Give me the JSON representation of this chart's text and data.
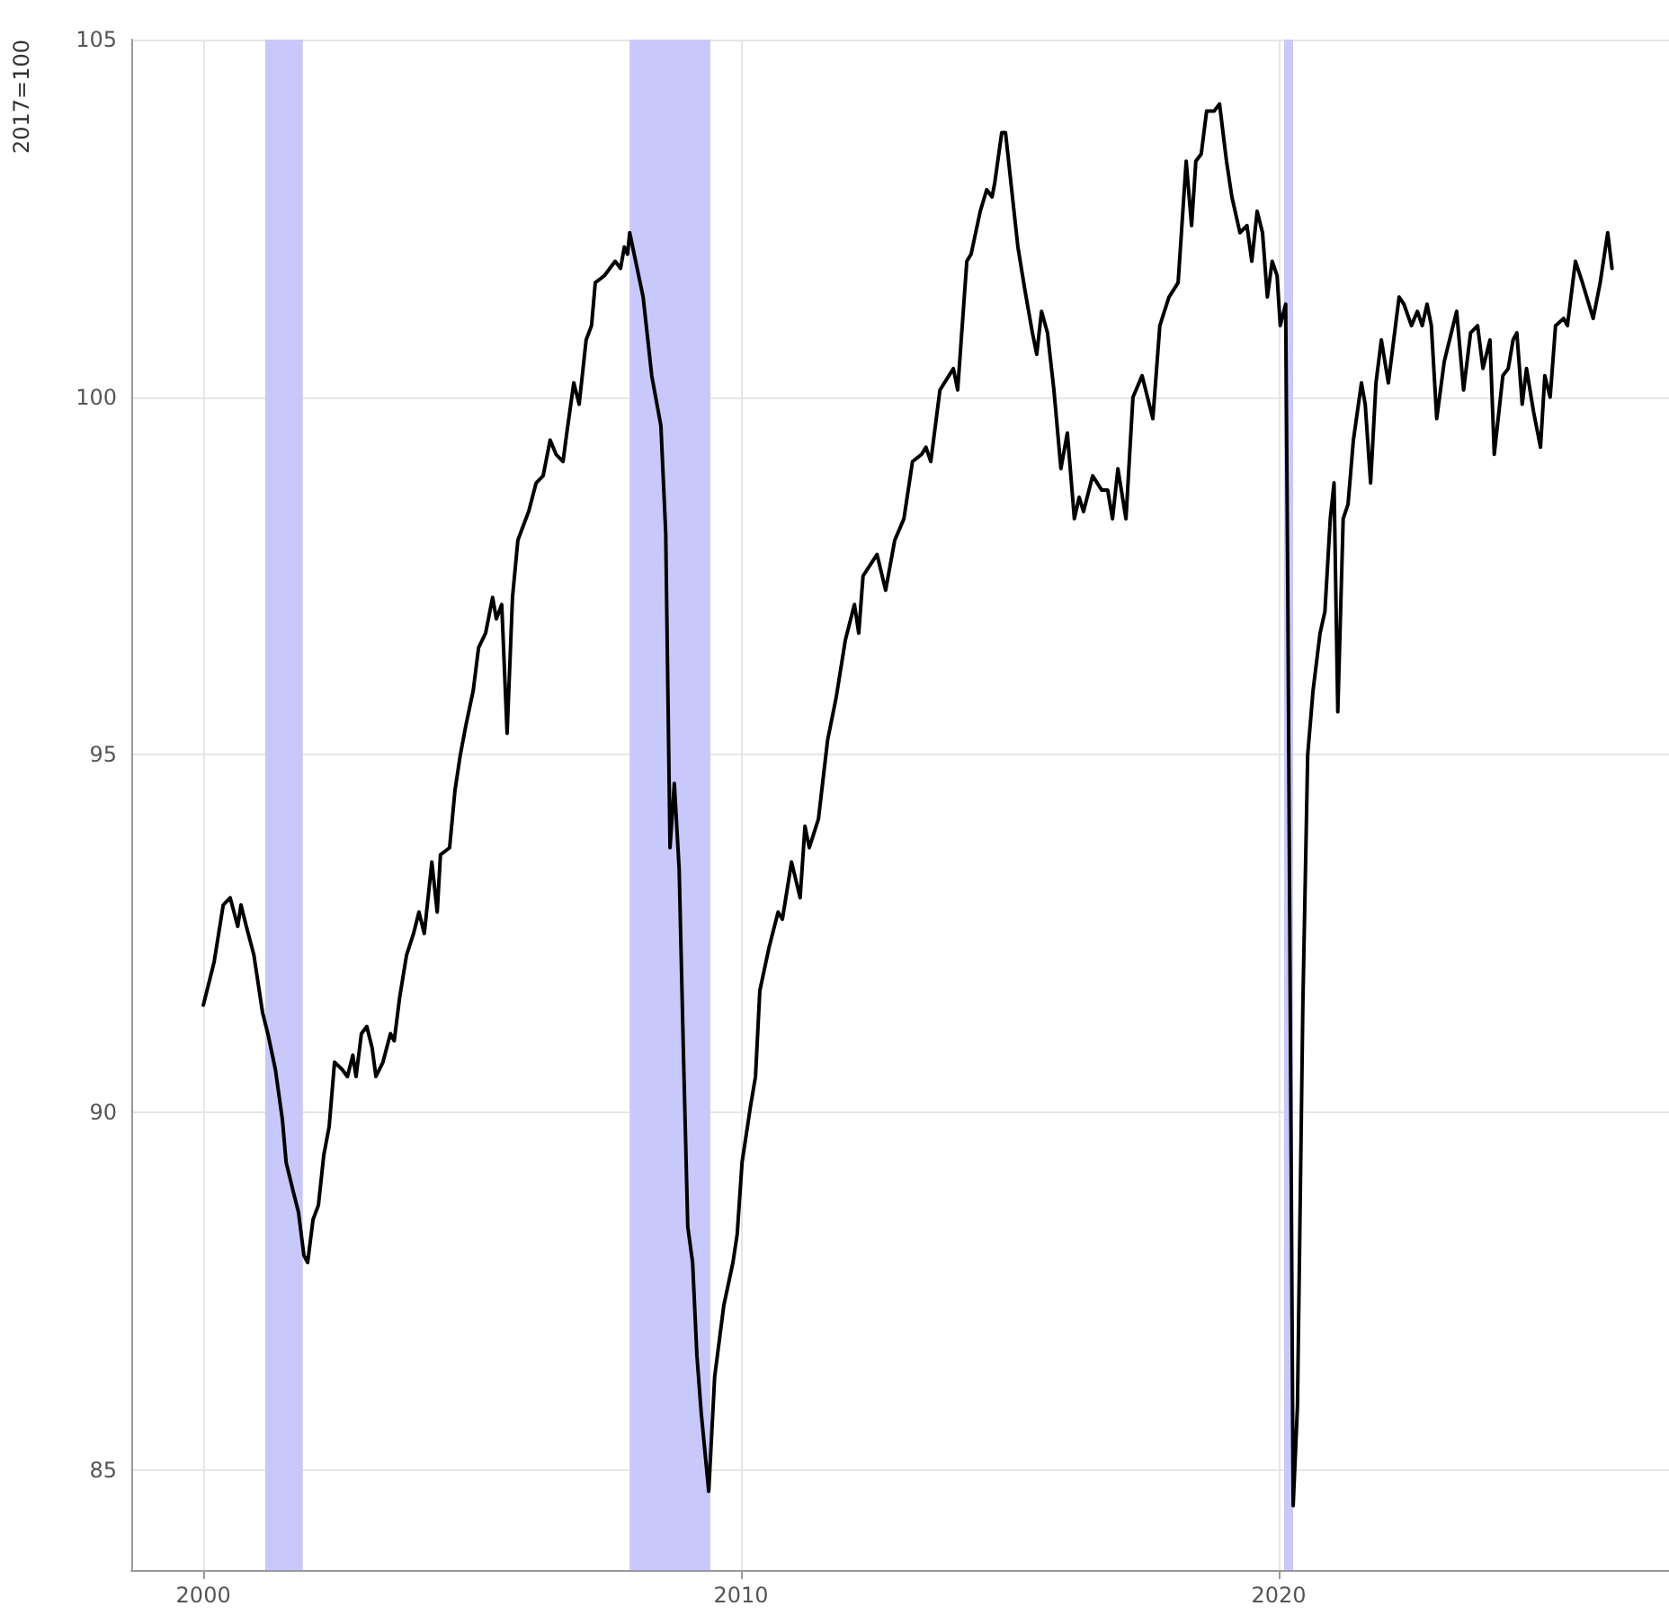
{
  "chart_data": {
    "type": "line",
    "ylabel": "2017=100",
    "xlim": [
      1998.66,
      2027.26
    ],
    "ylim": [
      83.6,
      105
    ],
    "xticks": [
      2000,
      2010,
      2020
    ],
    "yticks": [
      85,
      90,
      95,
      100,
      105
    ],
    "grid": true,
    "line_style": "solid",
    "bands": [
      {
        "axis": "x",
        "from": 2001.15,
        "to": 2001.85,
        "color": "#c8c8fa"
      },
      {
        "axis": "x",
        "from": 2007.93,
        "to": 2009.43,
        "color": "#c8c8fa"
      },
      {
        "axis": "x",
        "from": 2020.1,
        "to": 2020.27,
        "color": "#c8c8fa"
      }
    ],
    "series": [
      {
        "color": "#000000",
        "x": [
          2000.0,
          2000.2,
          2000.37,
          2000.5,
          2000.64,
          2000.7,
          2000.8,
          2000.94,
          2001.1,
          2001.2,
          2001.34,
          2001.47,
          2001.54,
          2001.67,
          2001.77,
          2001.87,
          2001.94,
          2002.04,
          2002.14,
          2002.24,
          2002.34,
          2002.44,
          2002.58,
          2002.68,
          2002.78,
          2002.84,
          2002.94,
          2003.04,
          2003.14,
          2003.21,
          2003.34,
          2003.48,
          2003.55,
          2003.65,
          2003.78,
          2003.91,
          2004.01,
          2004.11,
          2004.25,
          2004.35,
          2004.41,
          2004.58,
          2004.68,
          2004.78,
          2004.88,
          2005.02,
          2005.12,
          2005.25,
          2005.38,
          2005.45,
          2005.55,
          2005.65,
          2005.75,
          2005.85,
          2005.95,
          2006.05,
          2006.19,
          2006.32,
          2006.45,
          2006.56,
          2006.69,
          2006.76,
          2006.89,
          2006.99,
          2007.12,
          2007.22,
          2007.29,
          2007.46,
          2007.56,
          2007.66,
          2007.76,
          2007.83,
          2007.89,
          2007.93,
          2008.18,
          2008.34,
          2008.51,
          2008.6,
          2008.68,
          2008.76,
          2008.85,
          2008.93,
          2009.01,
          2009.1,
          2009.18,
          2009.26,
          2009.4,
          2009.51,
          2009.68,
          2009.85,
          2009.93,
          2010.02,
          2010.18,
          2010.27,
          2010.35,
          2010.52,
          2010.69,
          2010.77,
          2010.94,
          2011.1,
          2011.19,
          2011.27,
          2011.44,
          2011.61,
          2011.77,
          2011.94,
          2012.11,
          2012.19,
          2012.27,
          2012.53,
          2012.69,
          2012.86,
          2013.03,
          2013.19,
          2013.36,
          2013.44,
          2013.53,
          2013.7,
          2013.95,
          2014.03,
          2014.2,
          2014.28,
          2014.45,
          2014.57,
          2014.67,
          2014.72,
          2014.85,
          2014.92,
          2015.02,
          2015.15,
          2015.28,
          2015.42,
          2015.5,
          2015.59,
          2015.7,
          2015.82,
          2015.95,
          2016.07,
          2016.2,
          2016.29,
          2016.37,
          2016.54,
          2016.71,
          2016.82,
          2016.91,
          2017.01,
          2017.16,
          2017.29,
          2017.46,
          2017.66,
          2017.79,
          2017.96,
          2018.13,
          2018.28,
          2018.38,
          2018.46,
          2018.56,
          2018.66,
          2018.8,
          2018.9,
          2019.03,
          2019.13,
          2019.28,
          2019.41,
          2019.5,
          2019.6,
          2019.7,
          2019.79,
          2019.88,
          2019.97,
          2020.03,
          2020.13,
          2020.17,
          2020.27,
          2020.35,
          2020.45,
          2020.54,
          2020.64,
          2020.77,
          2020.86,
          2020.96,
          2021.03,
          2021.1,
          2021.2,
          2021.29,
          2021.39,
          2021.54,
          2021.61,
          2021.71,
          2021.81,
          2021.91,
          2022.04,
          2022.24,
          2022.33,
          2022.47,
          2022.58,
          2022.67,
          2022.76,
          2022.84,
          2022.94,
          2023.08,
          2023.31,
          2023.44,
          2023.57,
          2023.7,
          2023.8,
          2023.93,
          2024.01,
          2024.17,
          2024.27,
          2024.36,
          2024.43,
          2024.53,
          2024.61,
          2024.74,
          2024.87,
          2024.95,
          2025.05,
          2025.15,
          2025.3,
          2025.37,
          2025.52,
          2025.65,
          2025.85,
          2025.98,
          2026.12,
          2026.2
        ],
        "values": [
          91.5,
          92.1,
          92.9,
          93.0,
          92.6,
          92.9,
          92.6,
          92.2,
          91.4,
          91.1,
          90.6,
          89.9,
          89.3,
          88.9,
          88.6,
          88.0,
          87.9,
          88.5,
          88.7,
          89.4,
          89.8,
          90.7,
          90.6,
          90.5,
          90.8,
          90.5,
          91.1,
          91.2,
          90.9,
          90.5,
          90.7,
          91.1,
          91.0,
          91.6,
          92.2,
          92.5,
          92.8,
          92.5,
          93.5,
          92.8,
          93.6,
          93.7,
          94.5,
          95.0,
          95.4,
          95.9,
          96.5,
          96.7,
          97.2,
          96.9,
          97.1,
          95.3,
          97.2,
          98.0,
          98.2,
          98.4,
          98.8,
          98.9,
          99.4,
          99.2,
          99.1,
          99.5,
          100.2,
          99.9,
          100.8,
          101.0,
          101.6,
          101.7,
          101.8,
          101.9,
          101.8,
          102.1,
          102.0,
          102.3,
          101.4,
          100.3,
          99.6,
          98.1,
          93.7,
          94.6,
          93.4,
          90.8,
          88.4,
          87.9,
          86.6,
          85.8,
          84.7,
          86.3,
          87.3,
          87.9,
          88.3,
          89.3,
          90.1,
          90.5,
          91.7,
          92.3,
          92.8,
          92.7,
          93.5,
          93.0,
          94.0,
          93.7,
          94.1,
          95.2,
          95.8,
          96.6,
          97.1,
          96.7,
          97.5,
          97.8,
          97.3,
          98.0,
          98.3,
          99.1,
          99.2,
          99.3,
          99.1,
          100.1,
          100.4,
          100.1,
          101.9,
          102.0,
          102.6,
          102.9,
          102.8,
          103.0,
          103.7,
          103.7,
          103.0,
          102.1,
          101.5,
          100.9,
          100.6,
          101.2,
          100.9,
          100.1,
          99.0,
          99.5,
          98.3,
          98.6,
          98.4,
          98.9,
          98.7,
          98.7,
          98.3,
          99.0,
          98.3,
          100.0,
          100.3,
          99.7,
          101.0,
          101.4,
          101.6,
          103.3,
          102.4,
          103.3,
          103.4,
          104.0,
          104.0,
          104.1,
          103.3,
          102.8,
          102.3,
          102.4,
          101.9,
          102.6,
          102.3,
          101.4,
          101.9,
          101.7,
          101.0,
          101.3,
          97.3,
          84.5,
          85.9,
          91.5,
          95.0,
          95.9,
          96.7,
          97.0,
          98.3,
          98.8,
          95.6,
          98.3,
          98.5,
          99.4,
          100.2,
          99.9,
          98.8,
          100.2,
          100.8,
          100.2,
          101.4,
          101.3,
          101.0,
          101.2,
          101.0,
          101.3,
          101.0,
          99.7,
          100.5,
          101.2,
          100.1,
          100.9,
          101.0,
          100.4,
          100.8,
          99.2,
          100.3,
          100.4,
          100.8,
          100.9,
          99.9,
          100.4,
          99.8,
          99.3,
          100.3,
          100.0,
          101.0,
          101.1,
          101.0,
          101.9,
          101.6,
          101.1,
          101.6,
          102.3,
          101.8
        ]
      }
    ]
  }
}
